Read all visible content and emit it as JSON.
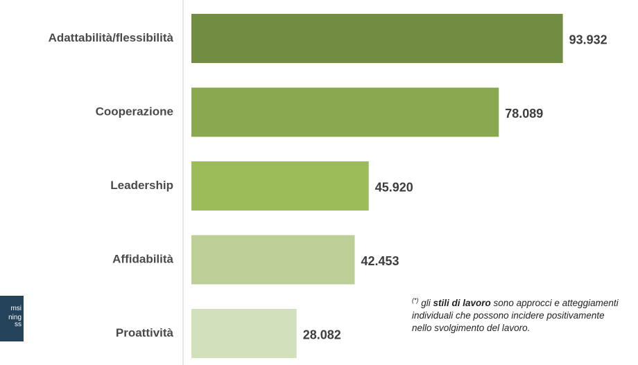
{
  "chart_data": {
    "type": "bar",
    "orientation": "horizontal",
    "categories": [
      "Adattabilità/flessibilità",
      "Cooperazione",
      "Leadership",
      "Affidabilità",
      "Proattività"
    ],
    "values": [
      93932,
      78089,
      45920,
      42453,
      28082
    ],
    "value_labels": [
      "93.932",
      "78.089",
      "45.920",
      "42.453",
      "28.082"
    ],
    "colors": [
      "#728c42",
      "#8aa84f",
      "#9cbc5a",
      "#bbcf96",
      "#d3e0bc"
    ],
    "xlim": [
      0,
      100000
    ],
    "grid": false,
    "legend": "none"
  },
  "footnote": {
    "marker": "(*)",
    "text_before": " gli ",
    "bold_text": "stili di lavoro",
    "text_after": " sono approcci e atteggiamenti individuali che possono incidere positivamente nello svolgimento del lavoro."
  },
  "logo": {
    "line1": "msi",
    "line2": "ning",
    "line3": "ss"
  },
  "colors": {
    "axis_line": "#d0d0d0",
    "logo_background": "#24435a"
  }
}
